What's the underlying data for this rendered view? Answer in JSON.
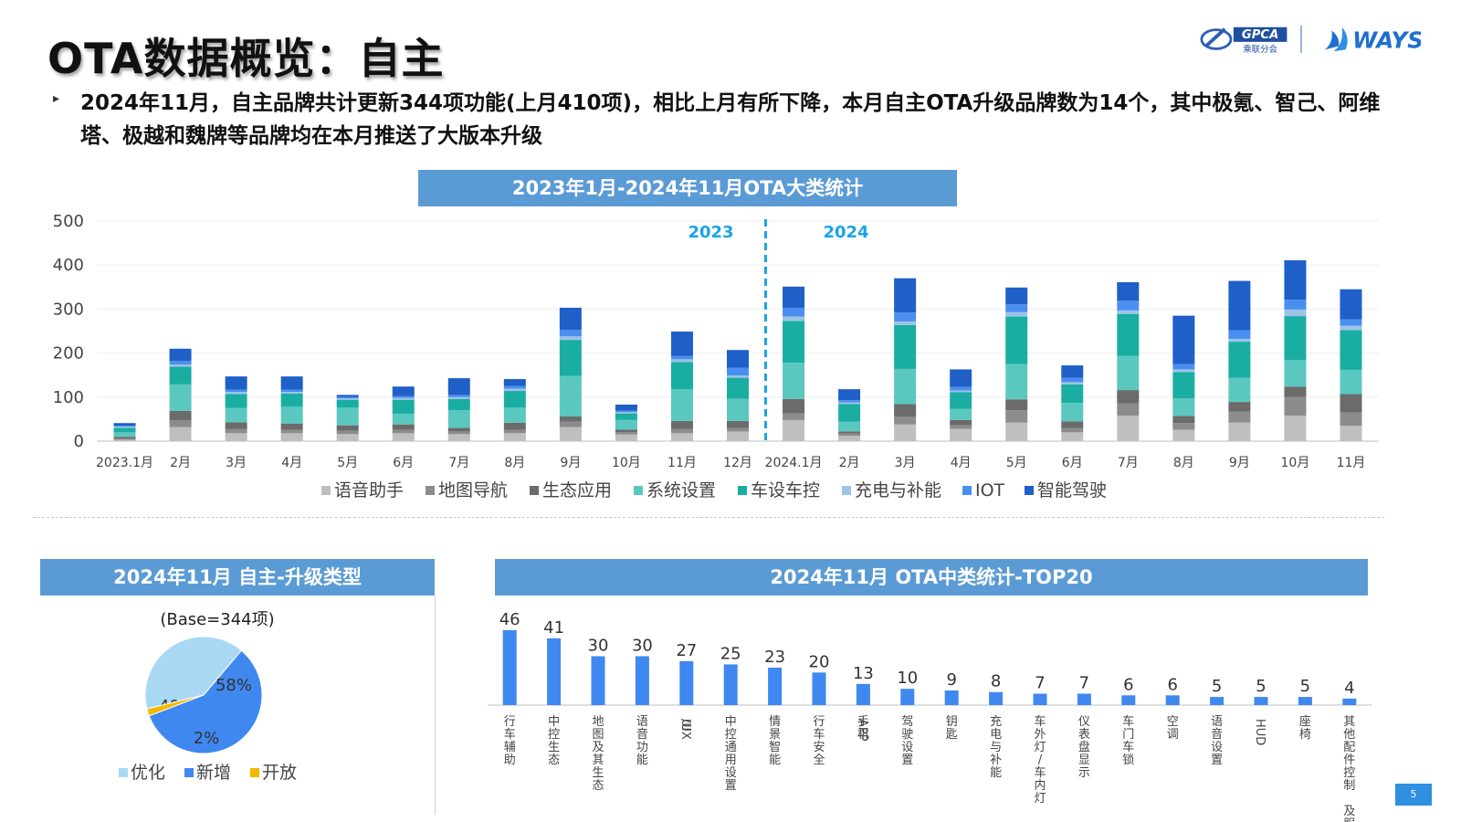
{
  "page": {
    "title": "OTA数据概览：自主",
    "bullet": "2024年11月，自主品牌共计更新344项功能(上月410项)，相比上月有所下降，本月自主OTA升级品牌数为14个，其中极氪、智己、阿维塔、极越和魏牌等品牌均在本月推送了大版本升级",
    "page_number": "5"
  },
  "logos": {
    "gpca": "GPCA",
    "gpca_sub": "乘联分会",
    "ways": "WAYS"
  },
  "chart_data": [
    {
      "type": "bar",
      "stacked": true,
      "title": "2023年1月-2024年11月OTA大类统计",
      "categories": [
        "2023.1月",
        "2月",
        "3月",
        "4月",
        "5月",
        "6月",
        "7月",
        "8月",
        "9月",
        "10月",
        "11月",
        "12月",
        "2024.1月",
        "2月",
        "3月",
        "4月",
        "5月",
        "6月",
        "7月",
        "8月",
        "9月",
        "10月",
        "11月"
      ],
      "ylim": [
        0,
        500
      ],
      "yticks": [
        0,
        100,
        200,
        300,
        400,
        500
      ],
      "grid": true,
      "legend": "bottom",
      "year_markers": [
        "2023",
        "2024"
      ],
      "series": [
        {
          "name": "语音助手",
          "color": "#bfbfbf",
          "values": [
            3,
            32,
            18,
            18,
            16,
            18,
            16,
            18,
            32,
            15,
            18,
            22,
            48,
            12,
            38,
            28,
            42,
            20,
            58,
            26,
            42,
            58,
            35
          ]
        },
        {
          "name": "地图导航",
          "color": "#8c8c8c",
          "values": [
            3,
            15,
            10,
            8,
            8,
            8,
            6,
            8,
            12,
            5,
            10,
            8,
            15,
            5,
            18,
            8,
            28,
            10,
            28,
            15,
            25,
            42,
            30
          ]
        },
        {
          "name": "生态应用",
          "color": "#6b6b6b",
          "values": [
            4,
            22,
            15,
            14,
            12,
            12,
            8,
            16,
            12,
            6,
            18,
            16,
            33,
            5,
            28,
            12,
            25,
            15,
            30,
            16,
            22,
            24,
            42
          ]
        },
        {
          "name": "系统设置",
          "color": "#5bc8c0",
          "values": [
            10,
            60,
            32,
            38,
            40,
            24,
            40,
            34,
            92,
            22,
            72,
            50,
            82,
            22,
            80,
            25,
            80,
            42,
            78,
            40,
            55,
            60,
            55
          ]
        },
        {
          "name": "车设车控",
          "color": "#1aaea3",
          "values": [
            10,
            40,
            32,
            30,
            18,
            32,
            26,
            38,
            82,
            15,
            62,
            48,
            95,
            40,
            100,
            38,
            108,
            42,
            95,
            60,
            82,
            100,
            90
          ]
        },
        {
          "name": "充电与补能",
          "color": "#9dc3e6",
          "values": [
            3,
            5,
            5,
            4,
            3,
            4,
            4,
            5,
            8,
            3,
            6,
            5,
            10,
            4,
            8,
            4,
            10,
            5,
            8,
            6,
            6,
            15,
            10
          ]
        },
        {
          "name": "IOT",
          "color": "#4a8ff0",
          "values": [
            2,
            8,
            5,
            5,
            3,
            4,
            5,
            6,
            15,
            3,
            8,
            18,
            20,
            5,
            20,
            8,
            18,
            10,
            22,
            12,
            20,
            22,
            15
          ]
        },
        {
          "name": "智能驾驶",
          "color": "#1f5fc8",
          "values": [
            6,
            28,
            30,
            30,
            5,
            22,
            38,
            16,
            50,
            14,
            55,
            40,
            48,
            25,
            78,
            40,
            38,
            28,
            42,
            110,
            112,
            90,
            68
          ]
        }
      ]
    },
    {
      "type": "pie",
      "title": "2024年11月 自主-升级类型",
      "subtitle": "(Base=344项)",
      "legend": "bottom",
      "slices": [
        {
          "name": "优化",
          "value": 40,
          "label": "40%",
          "color": "#a9d8f3"
        },
        {
          "name": "新增",
          "value": 58,
          "label": "58%",
          "color": "#3f88f0"
        },
        {
          "name": "开放",
          "value": 2,
          "label": "2%",
          "color": "#f5b800"
        }
      ]
    },
    {
      "type": "bar",
      "title": "2024年11月 OTA中类统计-TOP20",
      "color": "#3f88f0",
      "categories": [
        "行车辅助",
        "中控生态",
        "地图及其生态",
        "语音功能",
        "UI/UX",
        "中控通用设置",
        "情景智能",
        "行车安全",
        "手机APP",
        "驾驶设置",
        "钥匙",
        "充电与补能",
        "车外灯/车内灯",
        "仪表盘显示",
        "车门车锁",
        "空调",
        "语音设置",
        "HUD",
        "座椅",
        "其他配件控制及服务"
      ],
      "category_lines": [
        [
          "行车",
          "辅助"
        ],
        [
          "中控",
          "生态"
        ],
        [
          "地图",
          "及其",
          "生态"
        ],
        [
          "语音",
          "功能"
        ],
        [
          "UI",
          "/UX"
        ],
        [
          "中控",
          "通用",
          "设置"
        ],
        [
          "情景",
          "智能"
        ],
        [
          "行车",
          "安全"
        ],
        [
          "手机",
          "APP"
        ],
        [
          "驾驶",
          "设置"
        ],
        [
          "钥匙"
        ],
        [
          "充电",
          "与补",
          "能"
        ],
        [
          "车外",
          "灯/",
          "车内",
          "灯"
        ],
        [
          "仪表",
          "盘显",
          "示"
        ],
        [
          "车门",
          "车锁"
        ],
        [
          "空调"
        ],
        [
          "语音",
          "设置"
        ],
        [
          "HUD"
        ],
        [
          "座椅"
        ],
        [
          "其他",
          "配件",
          "控制",
          " 及服务"
        ]
      ],
      "values": [
        46,
        41,
        30,
        30,
        27,
        25,
        23,
        20,
        13,
        10,
        9,
        8,
        7,
        7,
        6,
        6,
        5,
        5,
        5,
        4
      ]
    }
  ]
}
